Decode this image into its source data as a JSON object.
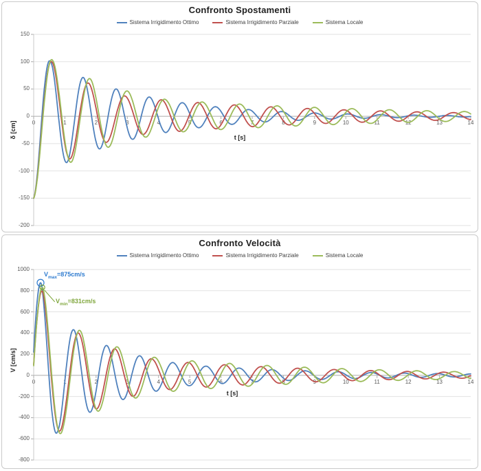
{
  "charts": [
    {
      "title": "Confronto Spostamenti",
      "legend": [
        {
          "label": "Sistema Irrigidimento Ottimo",
          "color": "#4F81BD"
        },
        {
          "label": "Sistema Irrigidimento Parziale",
          "color": "#C0504D"
        },
        {
          "label": "Sistema Locale",
          "color": "#9BBB59"
        }
      ],
      "x_axis": {
        "title": "t [s]",
        "min": 0,
        "max": 14,
        "ticks": [
          0,
          1,
          2,
          3,
          4,
          5,
          6,
          7,
          8,
          9,
          10,
          11,
          12,
          13,
          14
        ]
      },
      "y_axis": {
        "title": "δ [cm]",
        "min": -200,
        "max": 150,
        "ticks": [
          150,
          100,
          50,
          0,
          -50,
          -100,
          -150,
          -200
        ]
      },
      "chart_data": {
        "type": "line",
        "x_unit": "s",
        "y_unit": "cm",
        "grid": "horizontal",
        "legend_position": "top",
        "series": [
          {
            "name": "Sistema Irrigidimento Ottimo",
            "color": "#4F81BD",
            "model": {
              "kind": "damped_cosine",
              "amplitude": 150,
              "period_s": 1.06,
              "phase_rad": 3.1416,
              "damping_segments": [
                [
                  0.53,
                  0.75
                ],
                [
                  99,
                  0.33
                ]
              ]
            },
            "extrema_t_v": [
              [
                0,
                -150
              ],
              [
                0.53,
                101
              ],
              [
                1.06,
                -85
              ],
              [
                1.59,
                71
              ],
              [
                2.12,
                -60
              ],
              [
                2.65,
                50
              ],
              [
                3.18,
                -42
              ],
              [
                3.71,
                35
              ],
              [
                4.24,
                -30
              ],
              [
                4.77,
                25
              ],
              [
                5.3,
                -21
              ],
              [
                6.36,
                -15
              ],
              [
                7.42,
                -10
              ]
            ]
          },
          {
            "name": "Sistema Irrigidimento Parziale",
            "color": "#C0504D",
            "model": {
              "kind": "damped_cosine",
              "amplitude": 150,
              "period_s": 1.17,
              "phase_rad": 3.1416,
              "damping_segments": [
                [
                  0.59,
                  0.7
                ],
                [
                  3.0,
                  0.42
                ],
                [
                  99,
                  0.16
                ]
              ]
            },
            "extrema_t_v": [
              [
                0,
                -150
              ],
              [
                0.59,
                100
              ],
              [
                1.17,
                -78
              ],
              [
                1.76,
                61
              ],
              [
                2.34,
                -48
              ],
              [
                2.93,
                37
              ],
              [
                3.51,
                -33
              ],
              [
                4.1,
                30
              ],
              [
                4.68,
                -28
              ],
              [
                5.27,
                25
              ],
              [
                5.85,
                -23
              ],
              [
                7.61,
                17
              ]
            ]
          },
          {
            "name": "Sistema Locale",
            "color": "#9BBB59",
            "model": {
              "kind": "damped_cosine",
              "amplitude": 150,
              "period_s": 1.2,
              "phase_rad": 3.1416,
              "damping_segments": [
                [
                  0.62,
                  0.626
                ],
                [
                  4.3,
                  0.33
                ],
                [
                  99,
                  0.13
                ]
              ]
            },
            "extrema_t_v": [
              [
                0,
                -150
              ],
              [
                0.6,
                103
              ],
              [
                1.2,
                -80
              ],
              [
                1.8,
                69
              ],
              [
                2.4,
                -57
              ],
              [
                3.0,
                47
              ],
              [
                3.6,
                -40
              ],
              [
                4.2,
                33
              ],
              [
                4.8,
                -29
              ],
              [
                5.4,
                26
              ],
              [
                6.0,
                -24
              ],
              [
                7.8,
                19
              ]
            ]
          }
        ]
      }
    },
    {
      "title": "Confronto Velocità",
      "legend": [
        {
          "label": "Sistema Irrigidimento Ottimo",
          "color": "#4F81BD"
        },
        {
          "label": "Sistema Irrigidimento Parziale",
          "color": "#C0504D"
        },
        {
          "label": "Sistema Locale",
          "color": "#9BBB59"
        }
      ],
      "x_axis": {
        "title": "t [s]",
        "min": 0,
        "max": 14,
        "ticks": [
          0,
          1,
          2,
          3,
          4,
          5,
          6,
          7,
          8,
          9,
          10,
          11,
          12,
          13,
          14
        ]
      },
      "y_axis": {
        "title": "V [cm/s]",
        "min": -800,
        "max": 1000,
        "ticks": [
          1000,
          800,
          600,
          400,
          200,
          0,
          -200,
          -400,
          -600,
          -800
        ]
      },
      "annotations": [
        {
          "prefix": "V",
          "sub": "max",
          "rest": "=875cm/s",
          "value": 875,
          "t_s": 0.22,
          "series": "Sistema Irrigidimento Ottimo",
          "color": "#2E7BCF",
          "marker": "circle"
        },
        {
          "prefix": "V",
          "sub": "min",
          "rest": "=831cm/s",
          "value": 831,
          "t_s": 0.28,
          "series": "Sistema Locale",
          "color": "#7FA63C",
          "marker": "circle_with_leader"
        }
      ],
      "chart_data": {
        "type": "line",
        "x_unit": "s",
        "y_unit": "cm/s",
        "grid": "horizontal",
        "legend_position": "top",
        "series": [
          {
            "name": "Sistema Irrigidimento Ottimo",
            "color": "#4F81BD",
            "model": {
              "kind": "damped_cosine",
              "amplitude": 905,
              "period_s": 1.06,
              "phase_rad": -1.326,
              "damping_segments": [
                [
                  0.25,
                  0.15
                ],
                [
                  0.78,
                  0.95
                ],
                [
                  5.0,
                  0.4
                ],
                [
                  99,
                  0.22
                ]
              ]
            },
            "extrema_t_v": [
              [
                0,
                220
              ],
              [
                0.22,
                875
              ],
              [
                0.75,
                -533
              ],
              [
                1.28,
                432
              ],
              [
                1.81,
                -350
              ],
              [
                2.34,
                283
              ],
              [
                2.87,
                -229
              ],
              [
                3.4,
                186
              ],
              [
                3.93,
                -150
              ],
              [
                4.46,
                122
              ],
              [
                4.99,
                -99
              ],
              [
                5.52,
                87
              ]
            ]
          },
          {
            "name": "Sistema Irrigidimento Parziale",
            "color": "#C0504D",
            "model": {
              "kind": "damped_cosine",
              "amplitude": 840,
              "period_s": 1.17,
              "phase_rad": -1.45,
              "damping_segments": [
                [
                  0.3,
                  0.2
                ],
                [
                  0.95,
                  0.75
                ],
                [
                  4.0,
                  0.4
                ],
                [
                  99,
                  0.17
                ]
              ]
            },
            "extrema_t_v": [
              [
                0,
                101
              ],
              [
                0.29,
                788
              ],
              [
                0.88,
                -495
              ],
              [
                1.46,
                390
              ],
              [
                2.05,
                -310
              ],
              [
                2.63,
                250
              ],
              [
                3.22,
                -202
              ],
              [
                3.8,
                164
              ],
              [
                4.39,
                -140
              ],
              [
                4.97,
                122
              ]
            ]
          },
          {
            "name": "Sistema Locale",
            "color": "#9BBB59",
            "model": {
              "kind": "damped_cosine",
              "amplitude": 867,
              "period_s": 1.2,
              "phase_rad": -1.466,
              "damping_segments": [
                [
                  0.3,
                  0.15
                ],
                [
                  0.95,
                  0.72
                ],
                [
                  4.0,
                  0.38
                ],
                [
                  99,
                  0.16
                ]
              ]
            },
            "extrema_t_v": [
              [
                0,
                90
              ],
              [
                0.28,
                831
              ],
              [
                0.93,
                -520
              ],
              [
                1.53,
                414
              ],
              [
                2.13,
                -330
              ],
              [
                2.73,
                262
              ],
              [
                3.33,
                -209
              ],
              [
                3.93,
                166
              ],
              [
                4.53,
                -148
              ],
              [
                5.13,
                134
              ]
            ]
          }
        ]
      }
    }
  ]
}
